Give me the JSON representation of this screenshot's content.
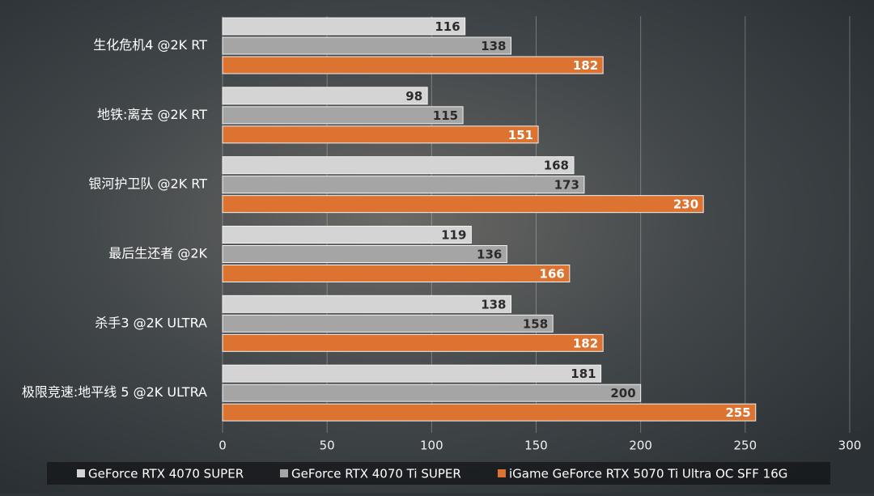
{
  "chart_data": {
    "type": "hbar",
    "categories": [
      "生化危机4 @2K RT",
      "地铁:离去 @2K RT",
      "银河护卫队 @2K RT",
      "最后生还者 @2K",
      "杀手3 @2K ULTRA",
      "极限竞速:地平线 5 @2K ULTRA"
    ],
    "series": [
      {
        "name": "GeForce RTX 4070 SUPER",
        "color": "#d4d4d4",
        "values": [
          116,
          98,
          168,
          119,
          138,
          181
        ]
      },
      {
        "name": "GeForce RTX 4070 Ti SUPER",
        "color": "#a5a5a5",
        "values": [
          138,
          115,
          173,
          136,
          158,
          200
        ]
      },
      {
        "name": "iGame GeForce RTX 5070 Ti Ultra OC SFF 16G",
        "color": "#dc7330",
        "values": [
          182,
          151,
          230,
          166,
          182,
          255
        ]
      }
    ],
    "xlim": [
      0,
      300
    ],
    "xticks": [
      0,
      50,
      100,
      150,
      200,
      250,
      300
    ],
    "grid": true,
    "legend": "bottom"
  }
}
